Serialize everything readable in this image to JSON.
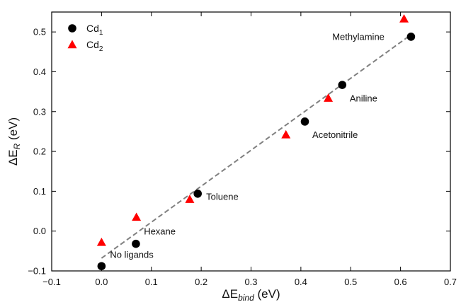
{
  "chart_data": {
    "type": "scatter",
    "xlabel": {
      "main": "ΔE",
      "sub": "bind",
      "unit": " (eV)"
    },
    "ylabel": {
      "main": "ΔE",
      "sub": "R",
      "unit": " (eV)"
    },
    "xlim": [
      -0.1,
      0.7
    ],
    "ylim": [
      -0.1,
      0.55
    ],
    "xticks": [
      -0.1,
      0.0,
      0.1,
      0.2,
      0.3,
      0.4,
      0.5,
      0.6,
      0.7
    ],
    "xtick_labels": [
      "−0.1",
      "0.0",
      "0.1",
      "0.2",
      "0.3",
      "0.4",
      "0.5",
      "0.6",
      "0.7"
    ],
    "yticks": [
      -0.1,
      0.0,
      0.1,
      0.2,
      0.3,
      0.4,
      0.5
    ],
    "ytick_labels": [
      "−0.1",
      "0.0",
      "0.1",
      "0.2",
      "0.3",
      "0.4",
      "0.5"
    ],
    "grid": false,
    "legend_position": "top-left",
    "series": [
      {
        "name_main": "Cd",
        "name_sub": "1",
        "marker": "circle",
        "color": "#000000",
        "points": [
          {
            "x": 0.0,
            "y": -0.088
          },
          {
            "x": 0.069,
            "y": -0.032
          },
          {
            "x": 0.193,
            "y": 0.094
          },
          {
            "x": 0.408,
            "y": 0.275
          },
          {
            "x": 0.483,
            "y": 0.367
          },
          {
            "x": 0.621,
            "y": 0.488
          }
        ]
      },
      {
        "name_main": "Cd",
        "name_sub": "2",
        "marker": "triangle",
        "color": "#ff0000",
        "points": [
          {
            "x": 0.0,
            "y": -0.028
          },
          {
            "x": 0.07,
            "y": 0.035
          },
          {
            "x": 0.177,
            "y": 0.08
          },
          {
            "x": 0.37,
            "y": 0.242
          },
          {
            "x": 0.455,
            "y": 0.334
          },
          {
            "x": 0.607,
            "y": 0.533
          }
        ]
      }
    ],
    "fit_line": {
      "color": "#808080",
      "x": [
        0.0,
        0.621
      ],
      "y": [
        -0.068,
        0.493
      ]
    },
    "annotations": [
      {
        "text": "No ligands",
        "x": 0.017,
        "y": -0.058
      },
      {
        "text": "Hexane",
        "x": 0.085,
        "y": 0.0
      },
      {
        "text": "Toluene",
        "x": 0.21,
        "y": 0.087
      },
      {
        "text": "Acetonitrile",
        "x": 0.423,
        "y": 0.243
      },
      {
        "text": "Aniline",
        "x": 0.498,
        "y": 0.334
      },
      {
        "text": "Methylamine",
        "x": 0.463,
        "y": 0.489
      }
    ]
  }
}
